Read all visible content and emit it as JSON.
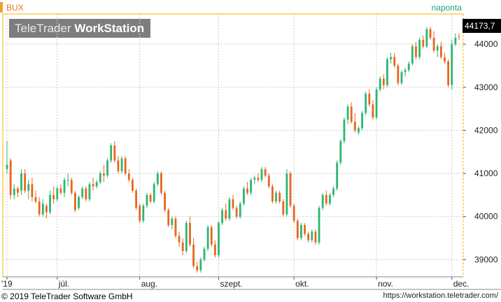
{
  "header": {
    "symbol": "BUX",
    "interval": "naponta",
    "brand_prefix": "TeleTrader ",
    "brand_bold": "WorkStation",
    "last_value": "44173,7"
  },
  "footer": {
    "copyright": "© 2019 TeleTrader Software GmbH",
    "url": "https://workstation.teletrader.com/"
  },
  "colors": {
    "up": "#2bb673",
    "down": "#e8661e",
    "grid": "#cccccc",
    "axis": "#ffb000"
  },
  "chart_data": {
    "type": "candlestick",
    "title": "",
    "xlabel": "",
    "ylabel": "",
    "ylim": [
      38600,
      44700
    ],
    "yticks": [
      39000,
      40000,
      41000,
      42000,
      43000,
      44000
    ],
    "ytick_labels": [
      "39000",
      "40000",
      "41000",
      "42000",
      "43000",
      "44000"
    ],
    "xtick_labels": [
      {
        "label": "'19",
        "index": 0
      },
      {
        "label": "júl.",
        "index": 14
      },
      {
        "label": "aug.",
        "index": 37
      },
      {
        "label": "szept.",
        "index": 59
      },
      {
        "label": "okt.",
        "index": 80
      },
      {
        "label": "nov.",
        "index": 103
      },
      {
        "label": "dec.",
        "index": 124
      }
    ],
    "ohlc": [
      [
        41100,
        41750,
        41000,
        41200
      ],
      [
        41300,
        41350,
        40400,
        40500
      ],
      [
        40500,
        40750,
        40400,
        40650
      ],
      [
        40650,
        40700,
        40450,
        40550
      ],
      [
        40600,
        41100,
        40500,
        41000
      ],
      [
        41000,
        41100,
        40550,
        40600
      ],
      [
        40600,
        40850,
        40400,
        40750
      ],
      [
        40750,
        40900,
        40350,
        40450
      ],
      [
        40450,
        40600,
        40300,
        40350
      ],
      [
        40350,
        40450,
        40000,
        40050
      ],
      [
        40050,
        40400,
        40000,
        40300
      ],
      [
        40250,
        40300,
        39950,
        40100
      ],
      [
        40100,
        40600,
        40050,
        40500
      ],
      [
        40500,
        40700,
        40300,
        40400
      ],
      [
        40400,
        40700,
        40350,
        40650
      ],
      [
        40650,
        40750,
        40500,
        40550
      ],
      [
        40550,
        40900,
        40450,
        40850
      ],
      [
        40850,
        41000,
        40700,
        40850
      ],
      [
        40850,
        40900,
        40500,
        40550
      ],
      [
        40550,
        40600,
        40100,
        40150
      ],
      [
        40200,
        40500,
        40150,
        40450
      ],
      [
        40450,
        40700,
        40400,
        40650
      ],
      [
        40650,
        40700,
        40350,
        40400
      ],
      [
        40400,
        40800,
        40350,
        40750
      ],
      [
        40750,
        40900,
        40600,
        40700
      ],
      [
        40700,
        40850,
        40650,
        40800
      ],
      [
        40800,
        41050,
        40750,
        41000
      ],
      [
        41000,
        41200,
        40800,
        40950
      ],
      [
        40950,
        41350,
        40900,
        41300
      ],
      [
        41300,
        41700,
        41250,
        41650
      ],
      [
        41650,
        41750,
        41250,
        41300
      ],
      [
        41300,
        41400,
        41000,
        41050
      ],
      [
        41050,
        41400,
        41000,
        41350
      ],
      [
        41350,
        41400,
        40950,
        41000
      ],
      [
        41000,
        41100,
        40800,
        40850
      ],
      [
        40850,
        40900,
        40550,
        40600
      ],
      [
        40600,
        40650,
        40150,
        40200
      ],
      [
        40250,
        40300,
        39850,
        39900
      ],
      [
        39900,
        40300,
        39850,
        40250
      ],
      [
        40250,
        40550,
        40200,
        40500
      ],
      [
        40500,
        40550,
        40300,
        40350
      ],
      [
        40350,
        40800,
        40300,
        40750
      ],
      [
        40750,
        41050,
        40700,
        41000
      ],
      [
        41000,
        41050,
        40500,
        40550
      ],
      [
        40550,
        40600,
        40100,
        40150
      ],
      [
        40150,
        40200,
        39750,
        39800
      ],
      [
        39800,
        40000,
        39700,
        39950
      ],
      [
        39950,
        40000,
        39500,
        39550
      ],
      [
        39550,
        39650,
        39300,
        39400
      ],
      [
        39400,
        39500,
        39100,
        39200
      ],
      [
        39200,
        39900,
        39150,
        39850
      ],
      [
        39850,
        40000,
        39300,
        39350
      ],
      [
        39350,
        39500,
        38800,
        38850
      ],
      [
        38850,
        38950,
        38700,
        38750
      ],
      [
        38750,
        39050,
        38700,
        39000
      ],
      [
        39000,
        39300,
        38950,
        39250
      ],
      [
        39250,
        39800,
        39200,
        39750
      ],
      [
        39750,
        39800,
        39300,
        39350
      ],
      [
        39350,
        39450,
        39050,
        39100
      ],
      [
        39100,
        39900,
        39050,
        39850
      ],
      [
        39850,
        40200,
        39800,
        40150
      ],
      [
        40150,
        40300,
        39900,
        39950
      ],
      [
        39950,
        40450,
        39900,
        40400
      ],
      [
        40400,
        40500,
        40150,
        40200
      ],
      [
        40200,
        40250,
        39950,
        40000
      ],
      [
        40000,
        40350,
        39950,
        40300
      ],
      [
        40300,
        40700,
        40250,
        40650
      ],
      [
        40650,
        40800,
        40500,
        40550
      ],
      [
        40550,
        40900,
        40500,
        40850
      ],
      [
        40850,
        40950,
        40750,
        40900
      ],
      [
        40900,
        41000,
        40800,
        40850
      ],
      [
        40850,
        41150,
        40800,
        41100
      ],
      [
        41100,
        41150,
        40900,
        40950
      ],
      [
        40950,
        41000,
        40650,
        40700
      ],
      [
        40700,
        40750,
        40300,
        40350
      ],
      [
        40350,
        40600,
        40300,
        40550
      ],
      [
        40550,
        40600,
        40300,
        40350
      ],
      [
        40350,
        40400,
        40000,
        40050
      ],
      [
        40050,
        41100,
        40000,
        41000
      ],
      [
        41000,
        41050,
        40200,
        40250
      ],
      [
        40250,
        40300,
        39850,
        39900
      ],
      [
        39900,
        39950,
        39450,
        39500
      ],
      [
        39500,
        39850,
        39450,
        39800
      ],
      [
        39800,
        39850,
        39550,
        39600
      ],
      [
        39600,
        39650,
        39400,
        39450
      ],
      [
        39450,
        39700,
        39400,
        39650
      ],
      [
        39650,
        39700,
        39350,
        39400
      ],
      [
        39400,
        40250,
        39350,
        40200
      ],
      [
        40200,
        40550,
        40150,
        40500
      ],
      [
        40500,
        40600,
        40250,
        40300
      ],
      [
        40300,
        40550,
        40250,
        40500
      ],
      [
        40500,
        40700,
        40450,
        40650
      ],
      [
        40650,
        41300,
        40600,
        41250
      ],
      [
        41250,
        41800,
        41200,
        41750
      ],
      [
        41750,
        42300,
        41700,
        42250
      ],
      [
        42250,
        42600,
        42150,
        42550
      ],
      [
        42550,
        42650,
        42150,
        42200
      ],
      [
        42200,
        42400,
        41950,
        42000
      ],
      [
        41950,
        42100,
        41900,
        42050
      ],
      [
        42050,
        42450,
        42000,
        42400
      ],
      [
        42400,
        42900,
        42350,
        42850
      ],
      [
        42850,
        42950,
        42550,
        42600
      ],
      [
        42600,
        42700,
        42250,
        42300
      ],
      [
        42300,
        43000,
        42250,
        42950
      ],
      [
        42950,
        43250,
        42900,
        43200
      ],
      [
        43200,
        43300,
        42950,
        43050
      ],
      [
        43050,
        43700,
        43000,
        43650
      ],
      [
        43650,
        43800,
        43550,
        43700
      ],
      [
        43700,
        43800,
        43450,
        43500
      ],
      [
        43500,
        43550,
        43050,
        43100
      ],
      [
        43100,
        43400,
        43050,
        43350
      ],
      [
        43350,
        43450,
        43250,
        43400
      ],
      [
        43400,
        43600,
        43350,
        43550
      ],
      [
        43550,
        44000,
        43500,
        43950
      ],
      [
        43950,
        44050,
        43650,
        43700
      ],
      [
        43700,
        44150,
        43650,
        44100
      ],
      [
        44100,
        44200,
        43900,
        43950
      ],
      [
        43950,
        44400,
        43900,
        44350
      ],
      [
        44350,
        44400,
        44100,
        44150
      ],
      [
        44150,
        44300,
        43800,
        43850
      ],
      [
        43850,
        44000,
        43700,
        43950
      ],
      [
        43950,
        44050,
        43650,
        43700
      ],
      [
        43700,
        43800,
        43550,
        43600
      ],
      [
        43600,
        43650,
        43000,
        43050
      ],
      [
        43050,
        44100,
        42950,
        44000
      ],
      [
        44000,
        44250,
        43950,
        44150
      ],
      [
        44180,
        44250,
        44100,
        44173.7
      ]
    ]
  }
}
